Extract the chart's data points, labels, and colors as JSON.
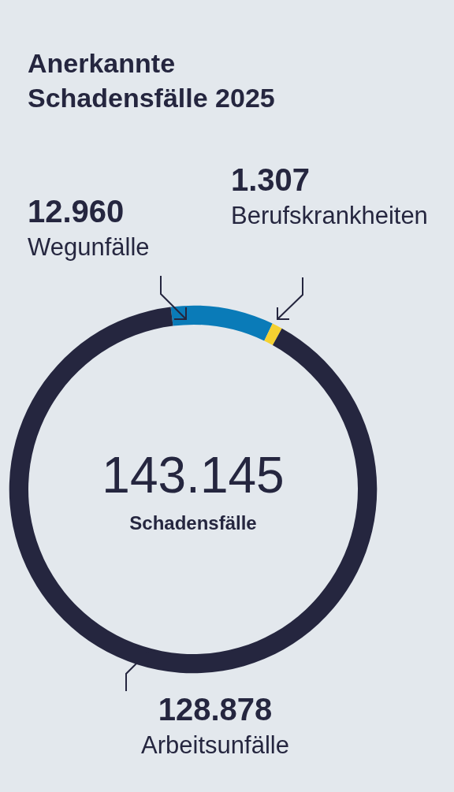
{
  "chart_data": {
    "type": "donut",
    "title": "Anerkannte\nSchadensfälle 2025",
    "categories": [
      "Wegunfälle",
      "Berufskrankheiten",
      "Arbeitsunfälle"
    ],
    "values": [
      12960,
      1307,
      128878
    ],
    "colors": [
      "#0a7bb8",
      "#f5d131",
      "#25263f"
    ],
    "value_labels": [
      "12.960",
      "1.307",
      "128.878"
    ],
    "annotations": [
      "143.145",
      "Schadensfälle"
    ],
    "legend": false
  }
}
